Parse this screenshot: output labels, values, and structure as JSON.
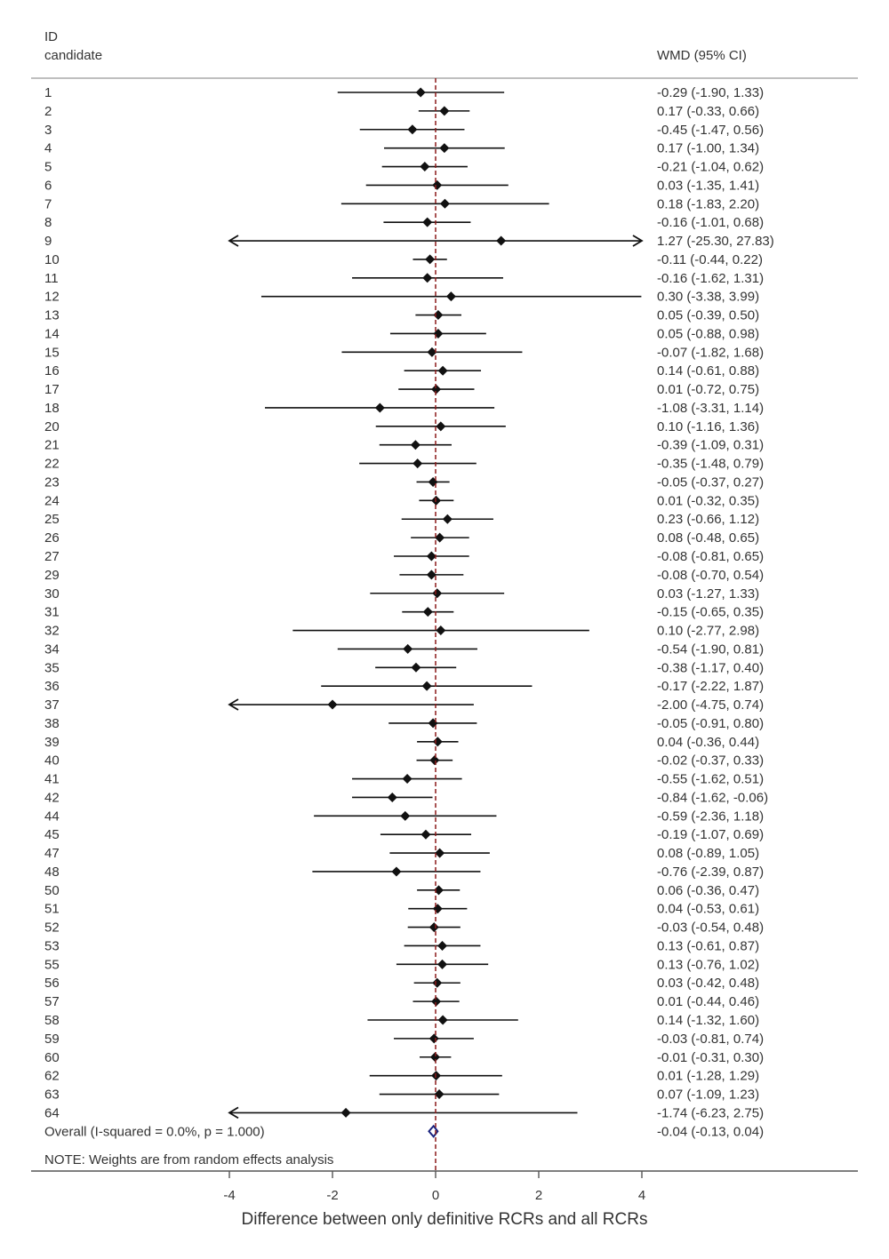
{
  "chart_data": {
    "type": "forest",
    "header": {
      "id_label_line1": "ID",
      "id_label_line2": "candidate",
      "effect_label": "WMD (95% CI)"
    },
    "xlabel": "Difference between only definitive RCRs and all RCRs",
    "x_ticks": [
      "-4",
      "-2",
      "0",
      "2",
      "4"
    ],
    "x_tick_values": [
      -4,
      -2,
      0,
      2,
      4
    ],
    "xlim": [
      -4,
      4
    ],
    "overall": {
      "label": "Overall  (I-squared = 0.0%, p = 1.000)",
      "estimate": -0.04,
      "lo": -0.13,
      "hi": 0.04,
      "ci_text": "-0.04 (-0.13, 0.04)"
    },
    "note": "NOTE: Weights are from random effects analysis",
    "colors": {
      "marker": "#111111",
      "overall": "#1a237e",
      "ref_line": "#8b1a1a",
      "axis": "#555555"
    },
    "studies": [
      {
        "id": "1",
        "est": -0.29,
        "lo": -1.9,
        "hi": 1.33,
        "ci_text": "-0.29 (-1.90, 1.33)"
      },
      {
        "id": "2",
        "est": 0.17,
        "lo": -0.33,
        "hi": 0.66,
        "ci_text": "0.17 (-0.33, 0.66)"
      },
      {
        "id": "3",
        "est": -0.45,
        "lo": -1.47,
        "hi": 0.56,
        "ci_text": "-0.45 (-1.47, 0.56)"
      },
      {
        "id": "4",
        "est": 0.17,
        "lo": -1.0,
        "hi": 1.34,
        "ci_text": "0.17 (-1.00, 1.34)"
      },
      {
        "id": "5",
        "est": -0.21,
        "lo": -1.04,
        "hi": 0.62,
        "ci_text": "-0.21 (-1.04, 0.62)"
      },
      {
        "id": "6",
        "est": 0.03,
        "lo": -1.35,
        "hi": 1.41,
        "ci_text": "0.03 (-1.35, 1.41)"
      },
      {
        "id": "7",
        "est": 0.18,
        "lo": -1.83,
        "hi": 2.2,
        "ci_text": "0.18 (-1.83, 2.20)"
      },
      {
        "id": "8",
        "est": -0.16,
        "lo": -1.01,
        "hi": 0.68,
        "ci_text": "-0.16 (-1.01, 0.68)"
      },
      {
        "id": "9",
        "est": 1.27,
        "lo": -25.3,
        "hi": 27.83,
        "ci_text": "1.27 (-25.30, 27.83)"
      },
      {
        "id": "10",
        "est": -0.11,
        "lo": -0.44,
        "hi": 0.22,
        "ci_text": "-0.11 (-0.44, 0.22)"
      },
      {
        "id": "11",
        "est": -0.16,
        "lo": -1.62,
        "hi": 1.31,
        "ci_text": "-0.16 (-1.62, 1.31)"
      },
      {
        "id": "12",
        "est": 0.3,
        "lo": -3.38,
        "hi": 3.99,
        "ci_text": "0.30 (-3.38, 3.99)"
      },
      {
        "id": "13",
        "est": 0.05,
        "lo": -0.39,
        "hi": 0.5,
        "ci_text": "0.05 (-0.39, 0.50)"
      },
      {
        "id": "14",
        "est": 0.05,
        "lo": -0.88,
        "hi": 0.98,
        "ci_text": "0.05 (-0.88, 0.98)"
      },
      {
        "id": "15",
        "est": -0.07,
        "lo": -1.82,
        "hi": 1.68,
        "ci_text": "-0.07 (-1.82, 1.68)"
      },
      {
        "id": "16",
        "est": 0.14,
        "lo": -0.61,
        "hi": 0.88,
        "ci_text": "0.14 (-0.61, 0.88)"
      },
      {
        "id": "17",
        "est": 0.01,
        "lo": -0.72,
        "hi": 0.75,
        "ci_text": "0.01 (-0.72, 0.75)"
      },
      {
        "id": "18",
        "est": -1.08,
        "lo": -3.31,
        "hi": 1.14,
        "ci_text": "-1.08 (-3.31, 1.14)"
      },
      {
        "id": "20",
        "est": 0.1,
        "lo": -1.16,
        "hi": 1.36,
        "ci_text": "0.10 (-1.16, 1.36)"
      },
      {
        "id": "21",
        "est": -0.39,
        "lo": -1.09,
        "hi": 0.31,
        "ci_text": "-0.39 (-1.09, 0.31)"
      },
      {
        "id": "22",
        "est": -0.35,
        "lo": -1.48,
        "hi": 0.79,
        "ci_text": "-0.35 (-1.48, 0.79)"
      },
      {
        "id": "23",
        "est": -0.05,
        "lo": -0.37,
        "hi": 0.27,
        "ci_text": "-0.05 (-0.37, 0.27)"
      },
      {
        "id": "24",
        "est": 0.01,
        "lo": -0.32,
        "hi": 0.35,
        "ci_text": "0.01 (-0.32, 0.35)"
      },
      {
        "id": "25",
        "est": 0.23,
        "lo": -0.66,
        "hi": 1.12,
        "ci_text": "0.23 (-0.66, 1.12)"
      },
      {
        "id": "26",
        "est": 0.08,
        "lo": -0.48,
        "hi": 0.65,
        "ci_text": "0.08 (-0.48, 0.65)"
      },
      {
        "id": "27",
        "est": -0.08,
        "lo": -0.81,
        "hi": 0.65,
        "ci_text": "-0.08 (-0.81, 0.65)"
      },
      {
        "id": "29",
        "est": -0.08,
        "lo": -0.7,
        "hi": 0.54,
        "ci_text": "-0.08 (-0.70, 0.54)"
      },
      {
        "id": "30",
        "est": 0.03,
        "lo": -1.27,
        "hi": 1.33,
        "ci_text": "0.03 (-1.27, 1.33)"
      },
      {
        "id": "31",
        "est": -0.15,
        "lo": -0.65,
        "hi": 0.35,
        "ci_text": "-0.15 (-0.65, 0.35)"
      },
      {
        "id": "32",
        "est": 0.1,
        "lo": -2.77,
        "hi": 2.98,
        "ci_text": "0.10 (-2.77, 2.98)"
      },
      {
        "id": "34",
        "est": -0.54,
        "lo": -1.9,
        "hi": 0.81,
        "ci_text": "-0.54 (-1.90, 0.81)"
      },
      {
        "id": "35",
        "est": -0.38,
        "lo": -1.17,
        "hi": 0.4,
        "ci_text": "-0.38 (-1.17, 0.40)"
      },
      {
        "id": "36",
        "est": -0.17,
        "lo": -2.22,
        "hi": 1.87,
        "ci_text": "-0.17 (-2.22, 1.87)"
      },
      {
        "id": "37",
        "est": -2.0,
        "lo": -4.75,
        "hi": 0.74,
        "ci_text": "-2.00 (-4.75, 0.74)"
      },
      {
        "id": "38",
        "est": -0.05,
        "lo": -0.91,
        "hi": 0.8,
        "ci_text": "-0.05 (-0.91, 0.80)"
      },
      {
        "id": "39",
        "est": 0.04,
        "lo": -0.36,
        "hi": 0.44,
        "ci_text": "0.04 (-0.36, 0.44)"
      },
      {
        "id": "40",
        "est": -0.02,
        "lo": -0.37,
        "hi": 0.33,
        "ci_text": "-0.02 (-0.37, 0.33)"
      },
      {
        "id": "41",
        "est": -0.55,
        "lo": -1.62,
        "hi": 0.51,
        "ci_text": "-0.55 (-1.62, 0.51)"
      },
      {
        "id": "42",
        "est": -0.84,
        "lo": -1.62,
        "hi": -0.06,
        "ci_text": "-0.84 (-1.62, -0.06)"
      },
      {
        "id": "44",
        "est": -0.59,
        "lo": -2.36,
        "hi": 1.18,
        "ci_text": "-0.59 (-2.36, 1.18)"
      },
      {
        "id": "45",
        "est": -0.19,
        "lo": -1.07,
        "hi": 0.69,
        "ci_text": "-0.19 (-1.07, 0.69)"
      },
      {
        "id": "47",
        "est": 0.08,
        "lo": -0.89,
        "hi": 1.05,
        "ci_text": "0.08 (-0.89, 1.05)"
      },
      {
        "id": "48",
        "est": -0.76,
        "lo": -2.39,
        "hi": 0.87,
        "ci_text": "-0.76 (-2.39, 0.87)"
      },
      {
        "id": "50",
        "est": 0.06,
        "lo": -0.36,
        "hi": 0.47,
        "ci_text": "0.06 (-0.36, 0.47)"
      },
      {
        "id": "51",
        "est": 0.04,
        "lo": -0.53,
        "hi": 0.61,
        "ci_text": "0.04 (-0.53, 0.61)"
      },
      {
        "id": "52",
        "est": -0.03,
        "lo": -0.54,
        "hi": 0.48,
        "ci_text": "-0.03 (-0.54, 0.48)"
      },
      {
        "id": "53",
        "est": 0.13,
        "lo": -0.61,
        "hi": 0.87,
        "ci_text": "0.13 (-0.61, 0.87)"
      },
      {
        "id": "55",
        "est": 0.13,
        "lo": -0.76,
        "hi": 1.02,
        "ci_text": "0.13 (-0.76, 1.02)"
      },
      {
        "id": "56",
        "est": 0.03,
        "lo": -0.42,
        "hi": 0.48,
        "ci_text": "0.03 (-0.42, 0.48)"
      },
      {
        "id": "57",
        "est": 0.01,
        "lo": -0.44,
        "hi": 0.46,
        "ci_text": "0.01 (-0.44, 0.46)"
      },
      {
        "id": "58",
        "est": 0.14,
        "lo": -1.32,
        "hi": 1.6,
        "ci_text": "0.14 (-1.32, 1.60)"
      },
      {
        "id": "59",
        "est": -0.03,
        "lo": -0.81,
        "hi": 0.74,
        "ci_text": "-0.03 (-0.81, 0.74)"
      },
      {
        "id": "60",
        "est": -0.01,
        "lo": -0.31,
        "hi": 0.3,
        "ci_text": "-0.01 (-0.31, 0.30)"
      },
      {
        "id": "62",
        "est": 0.01,
        "lo": -1.28,
        "hi": 1.29,
        "ci_text": "0.01 (-1.28, 1.29)"
      },
      {
        "id": "63",
        "est": 0.07,
        "lo": -1.09,
        "hi": 1.23,
        "ci_text": "0.07 (-1.09, 1.23)"
      },
      {
        "id": "64",
        "est": -1.74,
        "lo": -6.23,
        "hi": 2.75,
        "ci_text": "-1.74 (-6.23, 2.75)"
      }
    ]
  }
}
